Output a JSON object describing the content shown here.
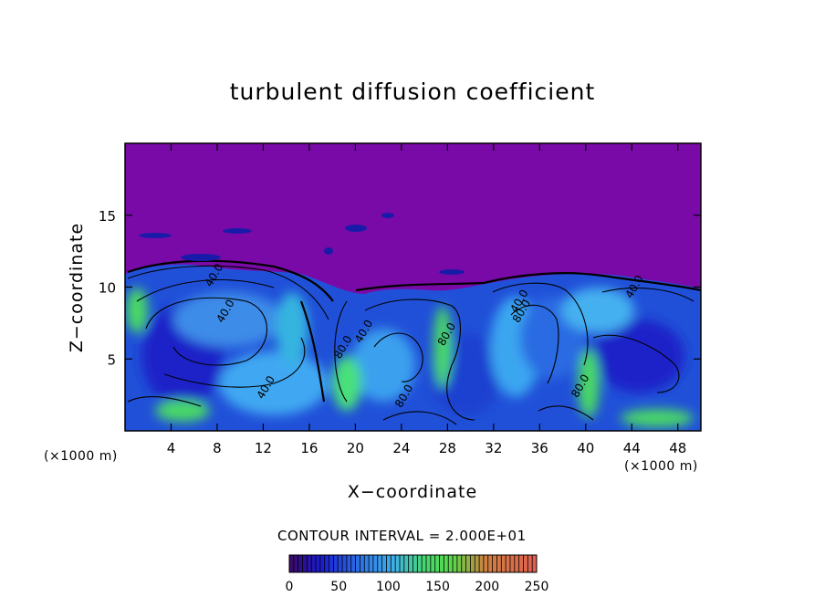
{
  "chart_data": {
    "type": "heatmap",
    "title": "turbulent diffusion coefficient",
    "xlabel": "X−coordinate",
    "ylabel": "Z−coordinate",
    "x_unit": "(×1000 m)",
    "z_unit": "(×1000 m)",
    "xlim": [
      0,
      50
    ],
    "ylim": [
      0,
      20
    ],
    "x_ticks": [
      4,
      8,
      12,
      16,
      20,
      24,
      28,
      32,
      36,
      40,
      44,
      48
    ],
    "y_ticks": [
      5,
      10,
      15
    ],
    "contour_interval_text": "CONTOUR INTERVAL = 2.000E+01",
    "colorbar": {
      "range": [
        0,
        250
      ],
      "ticks": [
        0,
        50,
        100,
        150,
        200,
        250
      ]
    },
    "contour_labels": [
      {
        "text": "40.0",
        "x": 8.0,
        "z": 10.7
      },
      {
        "text": "40.0",
        "x": 9.0,
        "z": 8.2
      },
      {
        "text": "40.0",
        "x": 12.5,
        "z": 2.9
      },
      {
        "text": "80.0",
        "x": 19.2,
        "z": 5.7
      },
      {
        "text": "40.0",
        "x": 21.0,
        "z": 6.8
      },
      {
        "text": "80.0",
        "x": 24.5,
        "z": 2.3
      },
      {
        "text": "80.0",
        "x": 28.2,
        "z": 6.6
      },
      {
        "text": "80.0",
        "x": 34.7,
        "z": 8.2
      },
      {
        "text": "80.0",
        "x": 39.8,
        "z": 3.0
      },
      {
        "text": "40.0",
        "x": 34.5,
        "z": 8.9
      },
      {
        "text": "40.0",
        "x": 44.5,
        "z": 9.9
      }
    ],
    "colors": {
      "background_field": "#7a0aa8",
      "low": "#1a1ad0",
      "mid": "#3fa4f0",
      "high": "#46e070",
      "contour": "#000000"
    }
  }
}
